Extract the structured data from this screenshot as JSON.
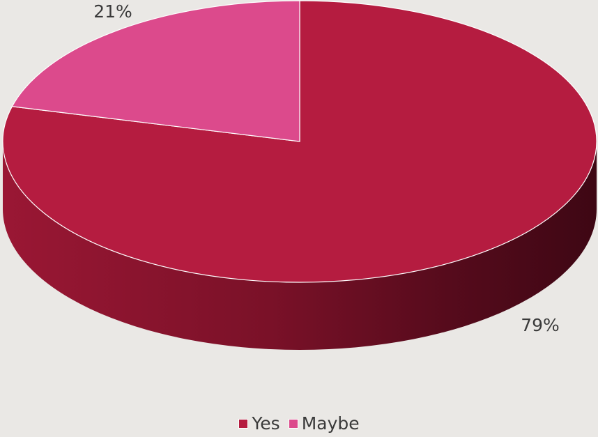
{
  "chart_data": {
    "type": "pie",
    "style": "3d",
    "categories": [
      "Yes",
      "Maybe"
    ],
    "values": [
      79,
      21
    ],
    "labels": [
      "79%",
      "21%"
    ],
    "colors": [
      "#b51c40",
      "#dc4a8c"
    ],
    "title": "",
    "legend_position": "bottom"
  }
}
